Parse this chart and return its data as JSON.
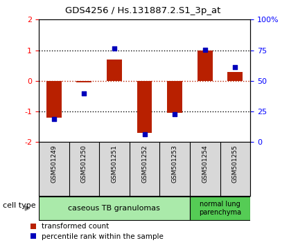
{
  "title": "GDS4256 / Hs.131887.2.S1_3p_at",
  "samples": [
    "GSM501249",
    "GSM501250",
    "GSM501251",
    "GSM501252",
    "GSM501253",
    "GSM501254",
    "GSM501255"
  ],
  "red_bars": [
    -1.2,
    -0.05,
    0.7,
    -1.7,
    -1.05,
    1.0,
    0.3
  ],
  "blue_dots": [
    -1.25,
    -0.4,
    1.05,
    -1.75,
    -1.1,
    1.02,
    0.45
  ],
  "ylim": [
    -2,
    2
  ],
  "hlines_dotted": [
    1.0,
    -1.0
  ],
  "hline_red_dashed": 0.0,
  "bar_color": "#b82000",
  "dot_color": "#0000bb",
  "bar_width": 0.5,
  "cell_types": [
    {
      "label": "caseous TB granulomas",
      "start": 0,
      "end": 5,
      "color": "#aaeaaa"
    },
    {
      "label": "normal lung\nparenchyma",
      "start": 5,
      "end": 7,
      "color": "#55cc55"
    }
  ],
  "cell_type_label": "cell type",
  "legend_red": "transformed count",
  "legend_blue": "percentile rank within the sample",
  "sample_box_color": "#d8d8d8",
  "right_tick_positions": [
    -2,
    -1,
    0,
    1,
    2
  ],
  "right_tick_labels": [
    "0",
    "25",
    "50",
    "75",
    "100%"
  ]
}
